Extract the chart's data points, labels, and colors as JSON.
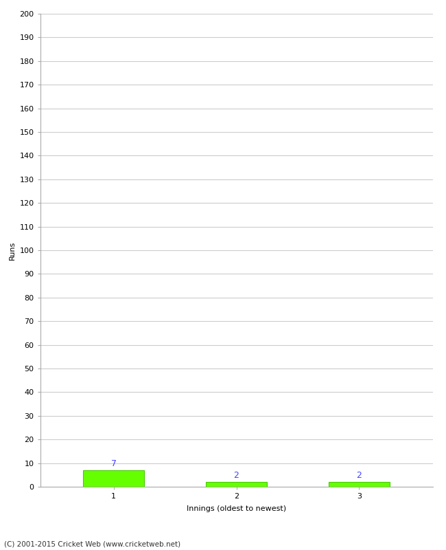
{
  "categories": [
    "1",
    "2",
    "3"
  ],
  "values": [
    7,
    2,
    2
  ],
  "bar_color": "#66ff00",
  "bar_edge_color": "#44cc00",
  "ylabel": "Runs",
  "xlabel": "Innings (oldest to newest)",
  "ylim": [
    0,
    200
  ],
  "yticks": [
    0,
    10,
    20,
    30,
    40,
    50,
    60,
    70,
    80,
    90,
    100,
    110,
    120,
    130,
    140,
    150,
    160,
    170,
    180,
    190,
    200
  ],
  "value_labels": [
    "7",
    "2",
    "2"
  ],
  "value_label_color": "#4444ff",
  "footnote": "(C) 2001-2015 Cricket Web (www.cricketweb.net)",
  "background_color": "#ffffff",
  "grid_color": "#cccccc"
}
